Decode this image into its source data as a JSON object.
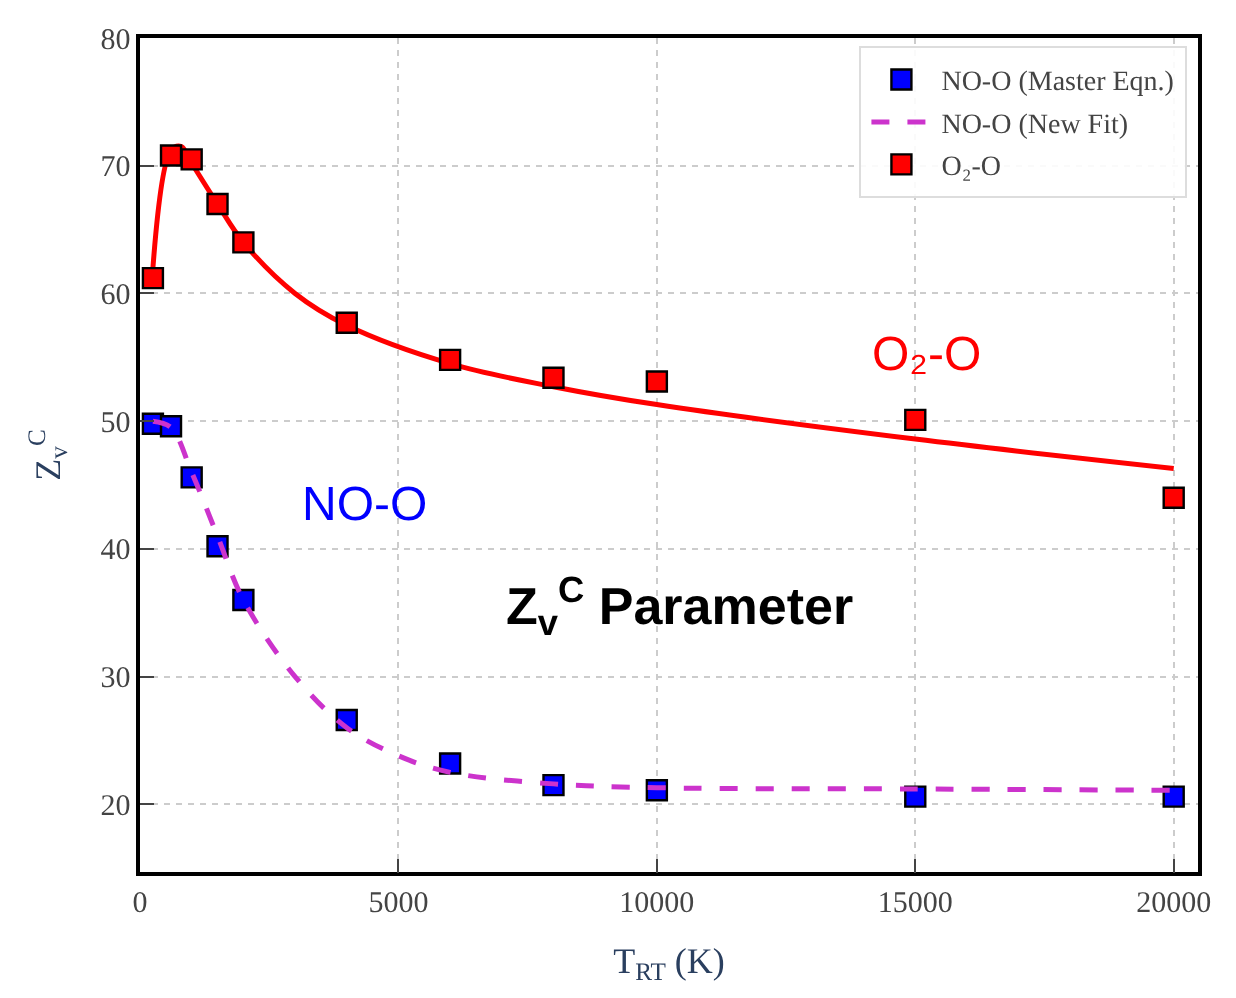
{
  "chart_data": {
    "type": "scatter",
    "xlabel": "T$_{RT}$ (K)",
    "ylabel": "Z$_{v}$$^{C}$",
    "xlim": [
      0,
      20470
    ],
    "ylim": [
      14.7,
      80
    ],
    "xticks": [
      0,
      5000,
      10000,
      15000,
      20000
    ],
    "yticks": [
      20,
      30,
      40,
      50,
      60,
      70,
      80
    ],
    "grid": true,
    "legend": "top right",
    "marker": "square",
    "series": [
      {
        "name": "NO-O (Master Eqn.)",
        "color": "#0000ff",
        "x": [
          250,
          600,
          1000,
          1500,
          2000,
          4000,
          6000,
          8000,
          10000,
          15000,
          20000
        ],
        "values": [
          49.8,
          49.6,
          45.6,
          40.2,
          36.0,
          26.6,
          23.2,
          21.5,
          21.1,
          20.6,
          20.6
        ]
      },
      {
        "name": "NO-O (New Fit)",
        "type": "line",
        "marker": "none",
        "line_style": "dashed",
        "color": "#cc33cc",
        "x": [
          250,
          600,
          1000,
          1500,
          2000,
          3000,
          4000,
          5000,
          6000,
          8000,
          10000,
          15000,
          20000
        ],
        "values": [
          50,
          49.5,
          46,
          41,
          36,
          30,
          26,
          23.8,
          22.5,
          21.6,
          21.3,
          21.2,
          21.1
        ]
      },
      {
        "type": "line",
        "marker": "none",
        "line_style": "solid",
        "color": "#ff0000",
        "x": [
          250,
          600,
          800,
          1000,
          1500,
          2000,
          3000,
          4000,
          6000,
          8000,
          10000,
          15000,
          20000
        ],
        "values": [
          62,
          71.2,
          71.5,
          70.2,
          67,
          64,
          60,
          57.5,
          54.5,
          52.7,
          51.3,
          48.6,
          46.3
        ]
      },
      {
        "name": "O₂-O",
        "color": "#ff0000",
        "x": [
          250,
          600,
          1000,
          1500,
          2000,
          4000,
          6000,
          8000,
          10000,
          15000,
          20000
        ],
        "values": [
          61.2,
          70.8,
          70.5,
          67.0,
          64.0,
          57.7,
          54.8,
          53.4,
          53.1,
          50.1,
          44.0
        ]
      }
    ],
    "annotations": [
      "O₂-O",
      "NO-O",
      "Z$_{v}$$^{C}$ Parameter"
    ]
  }
}
